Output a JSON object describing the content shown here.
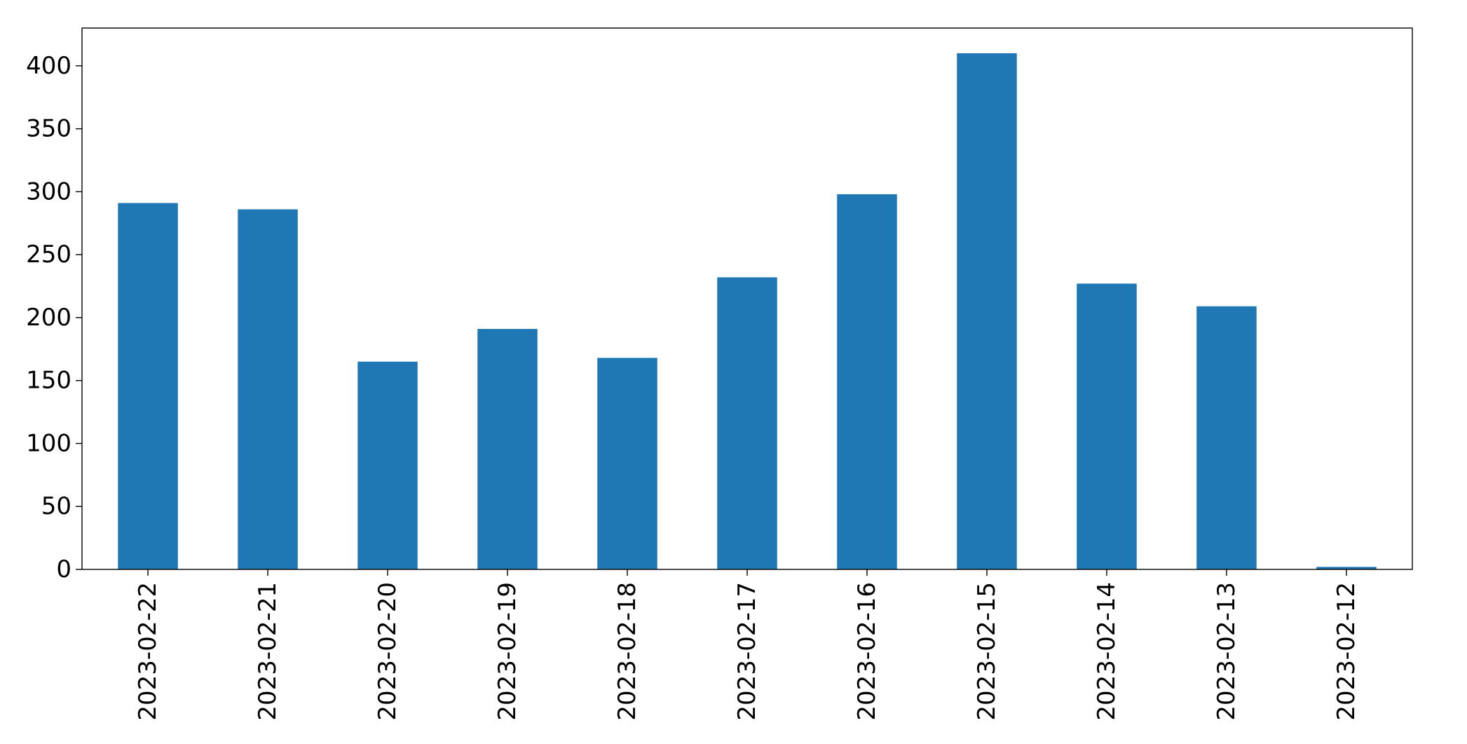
{
  "chart_data": {
    "type": "bar",
    "title": "",
    "xlabel": "",
    "ylabel": "",
    "categories": [
      "2023-02-22",
      "2023-02-21",
      "2023-02-20",
      "2023-02-19",
      "2023-02-18",
      "2023-02-17",
      "2023-02-16",
      "2023-02-15",
      "2023-02-14",
      "2023-02-13",
      "2023-02-12"
    ],
    "values": [
      291,
      286,
      165,
      191,
      168,
      232,
      298,
      410,
      227,
      209,
      2
    ],
    "ylim": [
      0,
      430
    ],
    "yticks": [
      0,
      50,
      100,
      150,
      200,
      250,
      300,
      350,
      400
    ],
    "bar_color": "#1f77b4",
    "grid": false,
    "x_tick_rotation": "vertical"
  }
}
